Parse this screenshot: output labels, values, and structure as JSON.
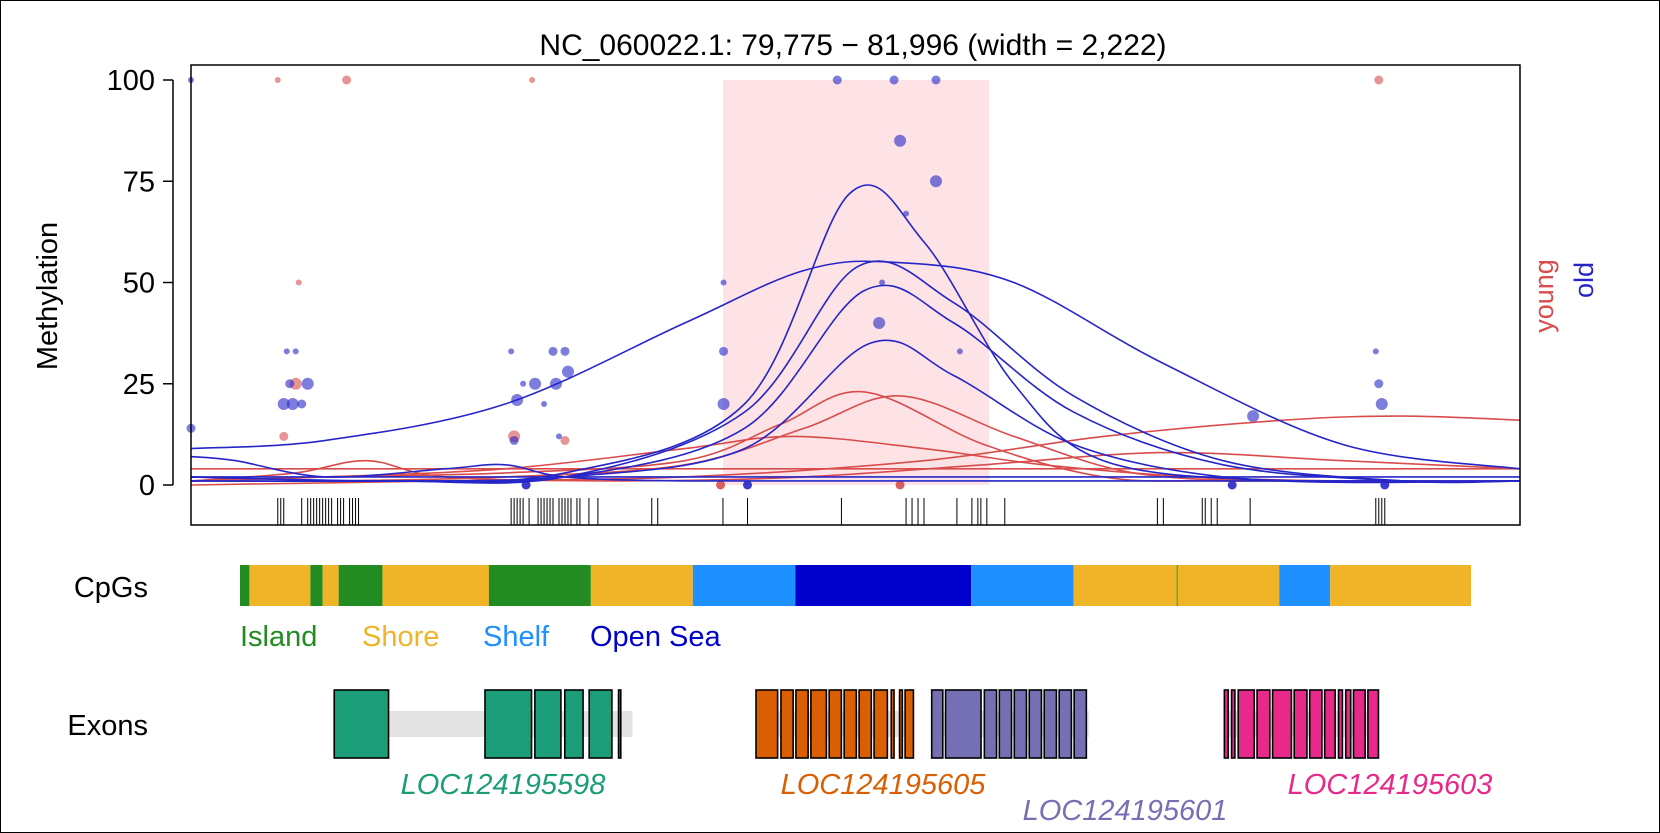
{
  "colors": {
    "young": "#d94c4c",
    "old": "#2626c8",
    "dmr_shade": "#fde3e6",
    "island": "#228b22",
    "shore": "#f0b428",
    "shelf": "#1e90ff",
    "open_sea": "#0000cd",
    "gene_1": "#1b9e77",
    "gene_2": "#d95f02",
    "gene_3": "#7570b3",
    "gene_4": "#e7298a"
  },
  "chart_data": {
    "type": "scatter",
    "title": "NC_060022.1: 79,775 − 81,996 (width = 2,222)",
    "xlim": [
      79775,
      81996
    ],
    "ylim": [
      -10,
      100
    ],
    "ylabel": "Methylation",
    "y_ticks": [
      "0",
      "25",
      "50",
      "75",
      "100"
    ],
    "y_tick_values": [
      0,
      25,
      50,
      75,
      100
    ],
    "grid": false,
    "legend": {
      "placement": "right",
      "entries": [
        "young",
        "old"
      ]
    },
    "dmr": {
      "x_start": 80664,
      "x_end": 81109
    },
    "cpg_sites": [
      79775,
      79920,
      79925,
      79930,
      79960,
      79970,
      79975,
      79980,
      79985,
      79990,
      79995,
      80000,
      80005,
      80010,
      80020,
      80025,
      80030,
      80040,
      80045,
      80050,
      80055,
      80310,
      80315,
      80320,
      80325,
      80330,
      80340,
      80355,
      80360,
      80365,
      80370,
      80375,
      80380,
      80390,
      80395,
      80400,
      80405,
      80410,
      80420,
      80425,
      80440,
      80455,
      80545,
      80555,
      80664,
      80705,
      80862,
      80970,
      80980,
      80990,
      81000,
      81055,
      81080,
      81090,
      81095,
      81105,
      81135,
      81390,
      81400,
      81465,
      81470,
      81480,
      81490,
      81545,
      81755,
      81760,
      81765,
      81770
    ],
    "samples": [
      {
        "group": "young",
        "points": [
          [
            79920,
            100
          ],
          [
            79930,
            12
          ],
          [
            79950,
            25
          ],
          [
            79955,
            50
          ],
          [
            80035,
            100
          ],
          [
            80315,
            12
          ],
          [
            80345,
            100
          ],
          [
            80400,
            11
          ],
          [
            80660,
            0
          ],
          [
            80960,
            0
          ],
          [
            81760,
            100
          ]
        ]
      },
      {
        "group": "old",
        "points": [
          [
            79775,
            100
          ],
          [
            79775,
            14
          ],
          [
            79930,
            20
          ],
          [
            79935,
            33
          ],
          [
            79940,
            25
          ],
          [
            79945,
            20
          ],
          [
            79950,
            33
          ],
          [
            79960,
            20
          ],
          [
            79970,
            25
          ],
          [
            80310,
            33
          ],
          [
            80315,
            11
          ],
          [
            80320,
            21
          ],
          [
            80330,
            25
          ],
          [
            80335,
            0
          ],
          [
            80350,
            25
          ],
          [
            80365,
            20
          ],
          [
            80380,
            33
          ],
          [
            80385,
            25
          ],
          [
            80390,
            12
          ],
          [
            80400,
            33
          ],
          [
            80405,
            28
          ],
          [
            80665,
            50
          ],
          [
            80665,
            33
          ],
          [
            80665,
            20
          ],
          [
            80705,
            0
          ],
          [
            80855,
            100
          ],
          [
            80925,
            40
          ],
          [
            80930,
            50
          ],
          [
            80950,
            100
          ],
          [
            80960,
            85
          ],
          [
            80970,
            67
          ],
          [
            81020,
            100
          ],
          [
            81020,
            75
          ],
          [
            81060,
            33
          ],
          [
            81515,
            0
          ],
          [
            81550,
            17
          ],
          [
            81755,
            33
          ],
          [
            81760,
            25
          ],
          [
            81765,
            20
          ],
          [
            81770,
            0
          ]
        ]
      }
    ],
    "smooth_lines": [
      {
        "group": "young",
        "x": [
          79775,
          80000,
          80300,
          80600,
          80760,
          80900,
          81100,
          81300,
          81500,
          81996
        ],
        "y": [
          1,
          2,
          3,
          6,
          15,
          23,
          10,
          2,
          1,
          1
        ]
      },
      {
        "group": "young",
        "x": [
          79775,
          80000,
          80300,
          80600,
          80800,
          80960,
          81150,
          81350,
          81600,
          81996
        ],
        "y": [
          1,
          1,
          2,
          5,
          14,
          22,
          12,
          3,
          1,
          1
        ]
      },
      {
        "group": "young",
        "x": [
          79775,
          80000,
          80300,
          80600,
          80780,
          81000,
          81200,
          81450,
          81700,
          81996
        ],
        "y": [
          1,
          2,
          4,
          9,
          12,
          9,
          5,
          2,
          1,
          1
        ]
      },
      {
        "group": "young",
        "x": [
          79775,
          79950,
          80070,
          80200,
          80500,
          80800,
          81100,
          81400,
          81700,
          81996
        ],
        "y": [
          1,
          3,
          6,
          2,
          1,
          2,
          5,
          8,
          6,
          4
        ]
      },
      {
        "group": "young",
        "x": [
          79775,
          80200,
          80600,
          81000,
          81300,
          81600,
          81800,
          81996
        ],
        "y": [
          0,
          1,
          2,
          6,
          12,
          16,
          17,
          16
        ]
      },
      {
        "group": "young",
        "x": [
          79775,
          80300,
          80800,
          81300,
          81996
        ],
        "y": [
          4,
          4,
          4,
          4,
          4
        ]
      },
      {
        "group": "old",
        "x": [
          79775,
          80100,
          80400,
          80700,
          80876,
          81000,
          81150,
          81300,
          81600,
          81996
        ],
        "y": [
          2,
          1,
          3,
          20,
          72,
          60,
          25,
          6,
          1,
          1
        ]
      },
      {
        "group": "old",
        "x": [
          79775,
          80100,
          80400,
          80700,
          80890,
          81050,
          81250,
          81500,
          81800,
          81996
        ],
        "y": [
          1,
          1,
          2,
          18,
          54,
          45,
          22,
          6,
          1,
          1
        ]
      },
      {
        "group": "old",
        "x": [
          79775,
          80100,
          80400,
          80700,
          80900,
          81050,
          81250,
          81500,
          81800,
          81996
        ],
        "y": [
          2,
          1,
          2,
          14,
          48,
          40,
          18,
          5,
          1,
          1
        ]
      },
      {
        "group": "old",
        "x": [
          79775,
          80100,
          80400,
          80700,
          80910,
          81050,
          81250,
          81500,
          81800,
          81996
        ],
        "y": [
          1,
          1,
          2,
          9,
          35,
          27,
          10,
          2,
          1,
          1
        ]
      },
      {
        "group": "old",
        "x": [
          79775,
          80000,
          80300,
          80600,
          80800,
          80950,
          81150,
          81400,
          81700,
          81996
        ],
        "y": [
          9,
          11,
          20,
          40,
          53,
          55,
          50,
          30,
          10,
          4
        ]
      },
      {
        "group": "old",
        "x": [
          79775,
          79850,
          80000,
          80200,
          80300,
          80400,
          80600,
          81000,
          81500,
          81996
        ],
        "y": [
          7,
          6,
          2,
          4,
          5,
          2,
          1,
          1,
          1,
          1
        ]
      },
      {
        "group": "old",
        "x": [
          79775,
          80300,
          80800,
          81300,
          81996
        ],
        "y": [
          2,
          2,
          2,
          2,
          2
        ]
      }
    ]
  },
  "cpg_track": {
    "label": "CpGs",
    "segments": [
      {
        "type": "Island",
        "start": 79775,
        "end": 79792
      },
      {
        "type": "Shore",
        "start": 79792,
        "end": 79902
      },
      {
        "type": "Island",
        "start": 79902,
        "end": 79924
      },
      {
        "type": "Shore",
        "start": 79924,
        "end": 79953
      },
      {
        "type": "Island",
        "start": 79953,
        "end": 80032
      },
      {
        "type": "Shore",
        "start": 80032,
        "end": 80224
      },
      {
        "type": "Island",
        "start": 80224,
        "end": 80408
      },
      {
        "type": "Shore",
        "start": 80408,
        "end": 80592
      },
      {
        "type": "Shelf",
        "start": 80592,
        "end": 80777
      },
      {
        "type": "Open Sea",
        "start": 80777,
        "end": 81094
      },
      {
        "type": "Shelf",
        "start": 81094,
        "end": 81279
      },
      {
        "type": "Shore",
        "start": 81279,
        "end": 81465
      },
      {
        "type": "Island",
        "start": 81465,
        "end": 81467
      },
      {
        "type": "Shore",
        "start": 81467,
        "end": 81650
      },
      {
        "type": "Shelf",
        "start": 81650,
        "end": 81742
      },
      {
        "type": "Shore",
        "start": 81742,
        "end": 81996
      }
    ],
    "legend": [
      "Island",
      "Shore",
      "Shelf",
      "Open Sea"
    ]
  },
  "exon_track": {
    "label": "Exons",
    "genes": [
      {
        "name": "LOC124195598",
        "intron": [
          79945,
          80483
        ],
        "exons": [
          [
            79945,
            80043
          ],
          [
            80217,
            80301
          ],
          [
            80307,
            80354
          ],
          [
            80361,
            80394
          ],
          [
            80405,
            80446
          ],
          [
            80458,
            80462
          ]
        ]
      },
      {
        "name": "LOC124195605",
        "intron": [
          80706,
          80990
        ],
        "exons": [
          [
            80706,
            80745
          ],
          [
            80751,
            80773
          ],
          [
            80778,
            80800
          ],
          [
            80805,
            80833
          ],
          [
            80838,
            80860
          ],
          [
            80865,
            80887
          ],
          [
            80892,
            80914
          ],
          [
            80919,
            80943
          ],
          [
            80950,
            80955
          ],
          [
            80965,
            80970
          ],
          [
            80975,
            80990
          ]
        ]
      },
      {
        "name": "LOC124195601",
        "intron": [
          81023,
          81307
        ],
        "exons": [
          [
            81023,
            81043
          ],
          [
            81048,
            81112
          ],
          [
            81118,
            81140
          ],
          [
            81145,
            81167
          ],
          [
            81172,
            81194
          ],
          [
            81199,
            81221
          ],
          [
            81226,
            81248
          ],
          [
            81253,
            81275
          ],
          [
            81280,
            81302
          ]
        ]
      },
      {
        "name": "LOC124195603",
        "intron": [
          81551,
          81829
        ],
        "exons": [
          [
            81551,
            81558
          ],
          [
            81564,
            81570
          ],
          [
            81576,
            81605
          ],
          [
            81610,
            81633
          ],
          [
            81638,
            81672
          ],
          [
            81677,
            81700
          ],
          [
            81705,
            81727
          ],
          [
            81732,
            81751
          ],
          [
            81757,
            81764
          ],
          [
            81770,
            81779
          ],
          [
            81784,
            81805
          ],
          [
            81810,
            81829
          ]
        ]
      }
    ]
  }
}
